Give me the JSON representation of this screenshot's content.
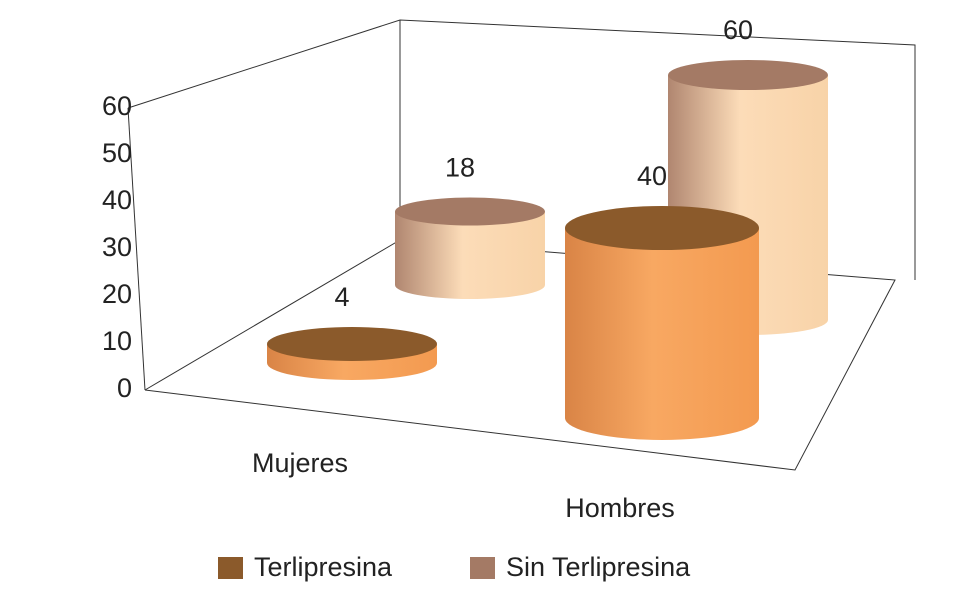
{
  "chart_data": {
    "type": "bar3d",
    "categories": [
      "Mujeres",
      "Hombres"
    ],
    "series": [
      {
        "name": "Terlipresina",
        "color": "#8b5a2b",
        "values": [
          4,
          40
        ]
      },
      {
        "name": "Sin Terlipresina",
        "color": "#a47a65",
        "values": [
          18,
          60
        ]
      }
    ],
    "ylim": [
      0,
      60
    ],
    "yticks": [
      0,
      10,
      20,
      30,
      40,
      50,
      60
    ]
  }
}
